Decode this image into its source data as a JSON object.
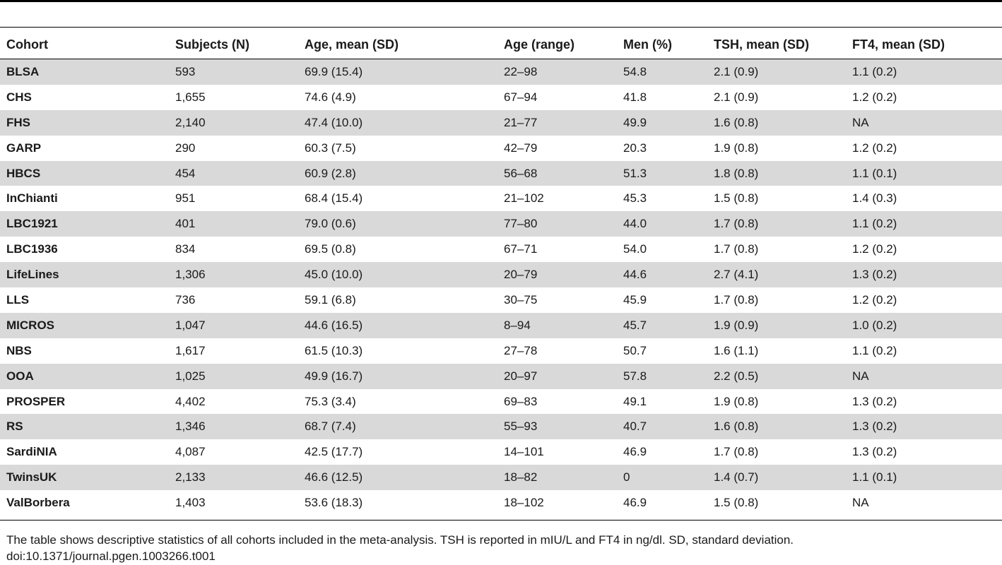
{
  "table": {
    "headers": [
      "Cohort",
      "Subjects (N)",
      "Age, mean (SD)",
      "Age (range)",
      "Men (%)",
      "TSH, mean (SD)",
      "FT4, mean (SD)"
    ],
    "rows": [
      [
        "BLSA",
        "593",
        "69.9 (15.4)",
        "22–98",
        "54.8",
        "2.1 (0.9)",
        "1.1 (0.2)"
      ],
      [
        "CHS",
        "1,655",
        "74.6 (4.9)",
        "67–94",
        "41.8",
        "2.1 (0.9)",
        "1.2 (0.2)"
      ],
      [
        "FHS",
        "2,140",
        "47.4 (10.0)",
        "21–77",
        "49.9",
        "1.6 (0.8)",
        "NA"
      ],
      [
        "GARP",
        "290",
        "60.3 (7.5)",
        "42–79",
        "20.3",
        "1.9 (0.8)",
        "1.2 (0.2)"
      ],
      [
        "HBCS",
        "454",
        "60.9 (2.8)",
        "56–68",
        "51.3",
        "1.8 (0.8)",
        "1.1 (0.1)"
      ],
      [
        "InChianti",
        "951",
        "68.4 (15.4)",
        "21–102",
        "45.3",
        "1.5 (0.8)",
        "1.4 (0.3)"
      ],
      [
        "LBC1921",
        "401",
        "79.0 (0.6)",
        "77–80",
        "44.0",
        "1.7 (0.8)",
        "1.1 (0.2)"
      ],
      [
        "LBC1936",
        "834",
        "69.5 (0.8)",
        "67–71",
        "54.0",
        "1.7 (0.8)",
        "1.2 (0.2)"
      ],
      [
        "LifeLines",
        "1,306",
        "45.0 (10.0)",
        "20–79",
        "44.6",
        "2.7 (4.1)",
        "1.3 (0.2)"
      ],
      [
        "LLS",
        "736",
        "59.1 (6.8)",
        "30–75",
        "45.9",
        "1.7 (0.8)",
        "1.2 (0.2)"
      ],
      [
        "MICROS",
        "1,047",
        "44.6 (16.5)",
        "8–94",
        "45.7",
        "1.9 (0.9)",
        "1.0 (0.2)"
      ],
      [
        "NBS",
        "1,617",
        "61.5 (10.3)",
        "27–78",
        "50.7",
        "1.6 (1.1)",
        "1.1 (0.2)"
      ],
      [
        "OOA",
        "1,025",
        "49.9 (16.7)",
        "20–97",
        "57.8",
        "2.2 (0.5)",
        "NA"
      ],
      [
        "PROSPER",
        "4,402",
        "75.3 (3.4)",
        "69–83",
        "49.1",
        "1.9 (0.8)",
        "1.3 (0.2)"
      ],
      [
        "RS",
        "1,346",
        "68.7 (7.4)",
        "55–93",
        "40.7",
        "1.6 (0.8)",
        "1.3 (0.2)"
      ],
      [
        "SardiNIA",
        "4,087",
        "42.5 (17.7)",
        "14–101",
        "46.9",
        "1.7 (0.8)",
        "1.3 (0.2)"
      ],
      [
        "TwinsUK",
        "2,133",
        "46.6 (12.5)",
        "18–82",
        "0",
        "1.4 (0.7)",
        "1.1 (0.1)"
      ],
      [
        "ValBorbera",
        "1,403",
        "53.6 (18.3)",
        "18–102",
        "46.9",
        "1.5 (0.8)",
        "NA"
      ]
    ]
  },
  "footnote": "The table shows descriptive statistics of all cohorts included in the meta-analysis. TSH is reported in mIU/L and FT4 in ng/dl. SD, standard deviation.",
  "doi": "doi:10.1371/journal.pgen.1003266.t001",
  "colors": {
    "stripe": "#d9d9d9",
    "rule": "#000000"
  }
}
